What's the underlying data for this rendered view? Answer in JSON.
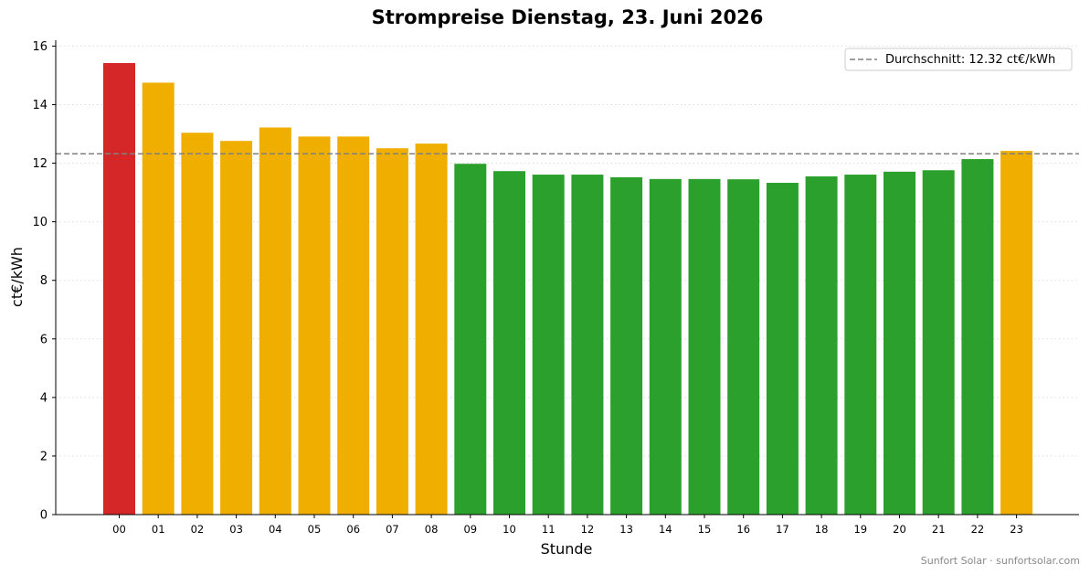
{
  "chart_data": {
    "type": "bar",
    "title": "Strompreise Dienstag, 23. Juni 2026",
    "xlabel": "Stunde",
    "ylabel": "ct€/kWh",
    "ylim": [
      0,
      16.2
    ],
    "yticks": [
      "0",
      "2",
      "4",
      "6",
      "8",
      "10",
      "12",
      "14",
      "16"
    ],
    "grid": "horizontal dotted",
    "legend_position": "top-right",
    "categories": [
      "00",
      "01",
      "02",
      "03",
      "04",
      "05",
      "06",
      "07",
      "08",
      "09",
      "10",
      "11",
      "12",
      "13",
      "14",
      "15",
      "16",
      "17",
      "18",
      "19",
      "20",
      "21",
      "22",
      "23"
    ],
    "values": [
      15.42,
      14.75,
      13.04,
      12.76,
      13.22,
      12.91,
      12.91,
      12.51,
      12.67,
      11.98,
      11.73,
      11.61,
      11.61,
      11.52,
      11.46,
      11.46,
      11.45,
      11.33,
      11.55,
      11.61,
      11.71,
      11.76,
      12.14,
      12.42
    ],
    "levels": [
      "high",
      "mid",
      "mid",
      "mid",
      "mid",
      "mid",
      "mid",
      "mid",
      "mid",
      "low",
      "low",
      "low",
      "low",
      "low",
      "low",
      "low",
      "low",
      "low",
      "low",
      "low",
      "low",
      "low",
      "low",
      "mid"
    ],
    "average": 12.32,
    "average_label": "Durchschnitt: 12.32 ct€/kWh",
    "colors": {
      "high": "#d62728",
      "mid": "#f0ae00",
      "low": "#2ca02c",
      "average_line": "#808080"
    }
  },
  "footer": "Sunfort Solar · sunfortsolar.com"
}
